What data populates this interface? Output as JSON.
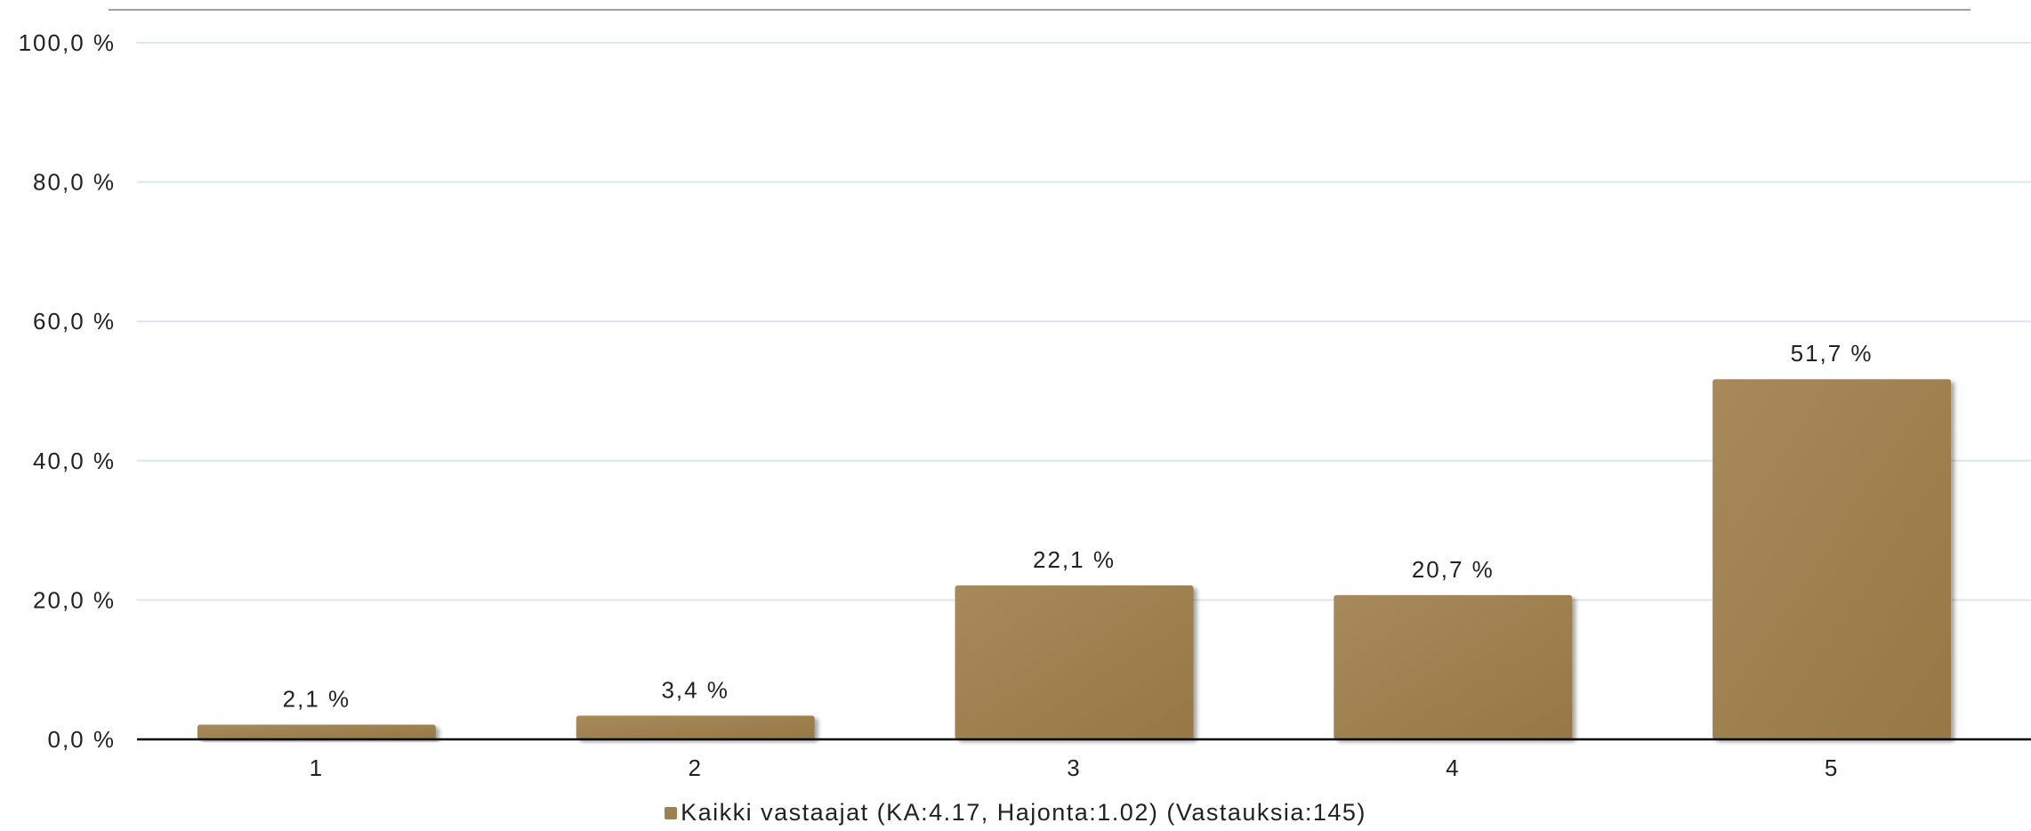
{
  "chart_data": {
    "type": "bar",
    "categories": [
      "1",
      "2",
      "3",
      "4",
      "5"
    ],
    "values": [
      2.1,
      3.4,
      22.1,
      20.7,
      51.7
    ],
    "value_labels": [
      "2,1 %",
      "3,4 %",
      "22,1 %",
      "20,7 %",
      "51,7 %"
    ],
    "y_ticks": [
      {
        "value": 0,
        "label": "0,0 %"
      },
      {
        "value": 20,
        "label": "20,0 %"
      },
      {
        "value": 40,
        "label": "40,0 %"
      },
      {
        "value": 60,
        "label": "60,0 %"
      },
      {
        "value": 80,
        "label": "80,0 %"
      },
      {
        "value": 100,
        "label": "100,0 %"
      }
    ],
    "ylim": [
      0,
      100
    ],
    "grid": true,
    "legend_position": "bottom",
    "series": [
      {
        "name": "Kaikki vastaajat (KA:4.17, Hajonta:1.02) (Vastauksia:145)",
        "values": [
          2.1,
          3.4,
          22.1,
          20.7,
          51.7
        ]
      }
    ],
    "colors": {
      "bar": "#9e8150",
      "bar_light": "#a8895a",
      "grid": "#dce6f0",
      "axis": "#000000",
      "top_rule": "#a0a0a0"
    }
  },
  "legend": {
    "label": "Kaikki vastaajat (KA:4.17, Hajonta:1.02) (Vastauksia:145)"
  }
}
